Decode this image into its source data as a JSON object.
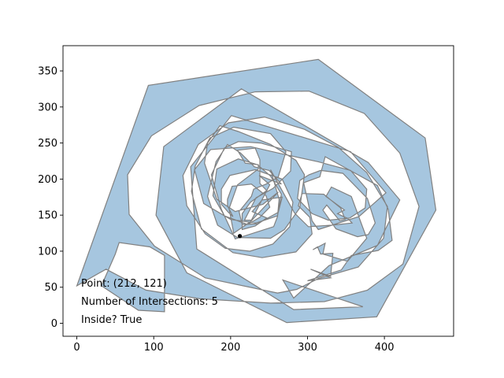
{
  "chart_data": {
    "type": "scatter",
    "title": "",
    "xlabel": "",
    "ylabel": "",
    "xlim": [
      -18,
      490
    ],
    "ylim": [
      -18,
      385
    ],
    "xticks": [
      0,
      100,
      200,
      300,
      400
    ],
    "yticks": [
      0,
      50,
      100,
      150,
      200,
      250,
      300,
      350
    ],
    "grid": false,
    "legend": "none",
    "polygon": {
      "fill_color": "#a6c6df",
      "edge_color": "#808080",
      "vertices": [
        [
          0,
          52
        ],
        [
          93,
          330
        ],
        [
          314,
          366
        ],
        [
          453,
          257
        ],
        [
          467,
          157
        ],
        [
          390,
          9
        ],
        [
          273,
          1
        ],
        [
          143,
          70
        ],
        [
          103,
          150
        ],
        [
          113,
          245
        ],
        [
          214,
          325
        ],
        [
          379,
          223
        ],
        [
          420,
          171
        ],
        [
          391,
          108
        ],
        [
          328,
          80
        ],
        [
          282,
          35
        ],
        [
          268,
          60
        ],
        [
          372,
          23
        ],
        [
          282,
          19
        ],
        [
          156,
          103
        ],
        [
          148,
          217
        ],
        [
          201,
          288
        ],
        [
          356,
          238
        ],
        [
          402,
          181
        ],
        [
          367,
          148
        ],
        [
          314,
          130
        ],
        [
          306,
          142
        ],
        [
          295,
          195
        ],
        [
          316,
          203
        ],
        [
          323,
          231
        ],
        [
          391,
          191
        ],
        [
          405,
          158
        ],
        [
          410,
          115
        ],
        [
          392,
          101
        ],
        [
          357,
          94
        ],
        [
          344,
          74
        ],
        [
          300,
          59
        ],
        [
          330,
          63
        ],
        [
          304,
          75
        ],
        [
          330,
          65
        ],
        [
          333,
          97
        ],
        [
          317,
          96
        ],
        [
          313,
          106
        ],
        [
          307,
          102
        ],
        [
          323,
          111
        ],
        [
          320,
          96
        ],
        [
          352,
          86
        ],
        [
          377,
          118
        ],
        [
          357,
          176
        ],
        [
          331,
          189
        ],
        [
          324,
          176
        ],
        [
          348,
          157
        ],
        [
          339,
          152
        ],
        [
          353,
          145
        ],
        [
          358,
          139
        ],
        [
          331,
          136
        ],
        [
          301,
          134
        ],
        [
          283,
          153
        ],
        [
          252,
          213
        ],
        [
          263,
          172
        ],
        [
          261,
          148
        ],
        [
          256,
          134
        ],
        [
          206,
          117
        ],
        [
          188,
          158
        ],
        [
          175,
          206
        ],
        [
          192,
          243
        ],
        [
          210,
          252
        ],
        [
          239,
          250
        ],
        [
          279,
          238
        ],
        [
          278,
          211
        ],
        [
          255,
          187
        ],
        [
          233,
          174
        ],
        [
          218,
          143
        ],
        [
          227,
          143
        ],
        [
          251,
          192
        ],
        [
          237,
          205
        ],
        [
          266,
          193
        ],
        [
          250,
          212
        ],
        [
          231,
          217
        ],
        [
          213,
          236
        ],
        [
          196,
          248
        ],
        [
          181,
          224
        ],
        [
          170,
          176
        ],
        [
          183,
          136
        ],
        [
          209,
          119
        ],
        [
          252,
          118
        ],
        [
          270,
          130
        ],
        [
          290,
          160
        ],
        [
          296,
          206
        ],
        [
          285,
          226
        ],
        [
          252,
          248
        ],
        [
          210,
          266
        ],
        [
          186,
          274
        ],
        [
          170,
          250
        ],
        [
          166,
          222
        ],
        [
          182,
          172
        ],
        [
          206,
          155
        ],
        [
          242,
          165
        ],
        [
          262,
          182
        ],
        [
          226,
          141
        ],
        [
          204,
          125
        ],
        [
          198,
          159
        ],
        [
          209,
          192
        ],
        [
          236,
          214
        ],
        [
          236,
          220
        ],
        [
          219,
          222
        ],
        [
          209,
          240
        ],
        [
          232,
          243
        ],
        [
          238,
          227
        ],
        [
          238,
          194
        ],
        [
          247,
          184
        ],
        [
          226,
          168
        ],
        [
          215,
          152
        ],
        [
          215,
          130
        ],
        [
          232,
          135
        ],
        [
          247,
          146
        ],
        [
          228,
          155
        ],
        [
          241,
          171
        ],
        [
          267,
          175
        ],
        [
          262,
          154
        ],
        [
          235,
          138
        ],
        [
          215,
          137
        ],
        [
          211,
          155
        ],
        [
          227,
          176
        ],
        [
          230,
          186
        ],
        [
          246,
          193
        ],
        [
          262,
          203
        ],
        [
          272,
          238
        ],
        [
          252,
          263
        ],
        [
          204,
          272
        ],
        [
          173,
          257
        ],
        [
          154,
          218
        ],
        [
          149,
          183
        ],
        [
          162,
          131
        ],
        [
          203,
          98
        ],
        [
          241,
          91
        ],
        [
          285,
          99
        ],
        [
          306,
          124
        ],
        [
          303,
          147
        ],
        [
          288,
          163
        ],
        [
          293,
          180
        ],
        [
          321,
          179
        ],
        [
          343,
          160
        ],
        [
          349,
          144
        ],
        [
          342,
          142
        ],
        [
          325,
          164
        ],
        [
          320,
          157
        ],
        [
          337,
          131
        ],
        [
          365,
          120
        ],
        [
          379,
          123
        ],
        [
          388,
          139
        ],
        [
          378,
          173
        ],
        [
          346,
          208
        ],
        [
          317,
          212
        ],
        [
          302,
          206
        ],
        [
          290,
          198
        ],
        [
          287,
          173
        ],
        [
          306,
          152
        ],
        [
          327,
          143
        ],
        [
          355,
          146
        ],
        [
          375,
          160
        ],
        [
          377,
          186
        ],
        [
          356,
          212
        ],
        [
          314,
          224
        ],
        [
          271,
          234
        ],
        [
          226,
          245
        ],
        [
          174,
          241
        ],
        [
          153,
          213
        ],
        [
          165,
          166
        ],
        [
          200,
          144
        ],
        [
          233,
          139
        ],
        [
          261,
          149
        ],
        [
          266,
          179
        ],
        [
          252,
          204
        ],
        [
          235,
          220
        ],
        [
          210,
          228
        ],
        [
          182,
          214
        ],
        [
          177,
          177
        ],
        [
          192,
          149
        ],
        [
          222,
          137
        ],
        [
          238,
          147
        ],
        [
          251,
          161
        ],
        [
          246,
          177
        ],
        [
          227,
          193
        ],
        [
          202,
          190
        ],
        [
          196,
          172
        ],
        [
          196,
          163
        ],
        [
          203,
          148
        ],
        [
          197,
          154
        ],
        [
          188,
          165
        ],
        [
          188,
          186
        ],
        [
          199,
          205
        ],
        [
          232,
          213
        ],
        [
          267,
          200
        ],
        [
          281,
          168
        ],
        [
          277,
          134
        ],
        [
          255,
          110
        ],
        [
          225,
          100
        ],
        [
          193,
          104
        ],
        [
          167,
          124
        ],
        [
          143,
          163
        ],
        [
          138,
          205
        ],
        [
          158,
          248
        ],
        [
          197,
          278
        ],
        [
          244,
          286
        ],
        [
          296,
          269
        ],
        [
          340,
          244
        ],
        [
          377,
          209
        ],
        [
          404,
          162
        ],
        [
          399,
          118
        ],
        [
          366,
          78
        ],
        [
          314,
          62
        ],
        [
          286,
          47
        ],
        [
          261,
          42
        ],
        [
          167,
          63
        ],
        [
          101,
          107
        ],
        [
          68,
          151
        ],
        [
          66,
          206
        ],
        [
          97,
          260
        ],
        [
          159,
          302
        ],
        [
          232,
          321
        ],
        [
          302,
          322
        ],
        [
          374,
          291
        ],
        [
          420,
          236
        ],
        [
          445,
          162
        ],
        [
          424,
          82
        ],
        [
          378,
          46
        ],
        [
          322,
          30
        ],
        [
          252,
          28
        ],
        [
          160,
          34
        ],
        [
          90,
          46
        ],
        [
          38,
          75
        ],
        [
          0,
          52
        ]
      ],
      "hole_a": [
        [
          32,
          52
        ],
        [
          80,
          18
        ],
        [
          114,
          16
        ],
        [
          114,
          94
        ],
        [
          95,
          106
        ],
        [
          55,
          112
        ],
        [
          50,
          96
        ],
        [
          32,
          52
        ]
      ]
    },
    "query_point": {
      "x": 212,
      "y": 121,
      "color": "#000000"
    },
    "annotations": [
      "Point: (212, 121)",
      "Number of Intersections: 5",
      "Inside? True"
    ]
  }
}
